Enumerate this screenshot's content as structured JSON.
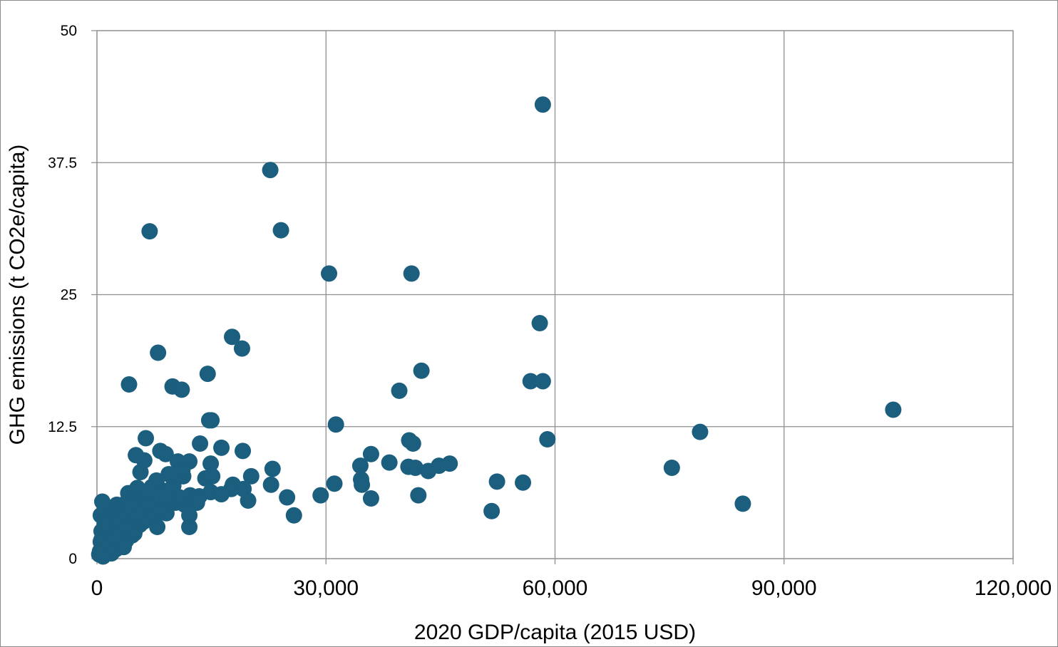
{
  "chart_data": {
    "type": "scatter",
    "xlabel": "2020 GDP/capita (2015 USD)",
    "ylabel": "GHG emissions (t CO2e/capita)",
    "xlim": [
      0,
      120000
    ],
    "ylim": [
      0,
      50
    ],
    "x_ticks": [
      "0",
      "30,000",
      "60,000",
      "90,000",
      "120,000"
    ],
    "y_ticks": [
      "0",
      "12.5",
      "25",
      "37.5",
      "50"
    ],
    "grid": true,
    "legend": "none",
    "marker_color": "#1b5e7e",
    "series": [
      {
        "points": [
          [
            58400,
            43.0
          ],
          [
            22700,
            36.8
          ],
          [
            6900,
            31.0
          ],
          [
            24100,
            31.1
          ],
          [
            30400,
            27.0
          ],
          [
            41200,
            27.0
          ],
          [
            17700,
            21.0
          ],
          [
            58000,
            22.3
          ],
          [
            19000,
            19.9
          ],
          [
            8000,
            19.5
          ],
          [
            42500,
            17.8
          ],
          [
            14500,
            17.5
          ],
          [
            4200,
            16.5
          ],
          [
            9900,
            16.3
          ],
          [
            11100,
            16.0
          ],
          [
            56800,
            16.8
          ],
          [
            58400,
            16.8
          ],
          [
            39600,
            15.9
          ],
          [
            104300,
            14.1
          ],
          [
            14700,
            13.1
          ],
          [
            15000,
            13.1
          ],
          [
            31300,
            12.7
          ],
          [
            79000,
            12.0
          ],
          [
            6400,
            11.4
          ],
          [
            40900,
            11.2
          ],
          [
            41400,
            10.9
          ],
          [
            59000,
            11.3
          ],
          [
            13500,
            10.9
          ],
          [
            16300,
            10.5
          ],
          [
            19100,
            10.2
          ],
          [
            35900,
            9.9
          ],
          [
            5100,
            9.8
          ],
          [
            8300,
            10.2
          ],
          [
            9000,
            9.9
          ],
          [
            6200,
            9.3
          ],
          [
            10600,
            9.2
          ],
          [
            12100,
            9.2
          ],
          [
            38300,
            9.1
          ],
          [
            46200,
            9.0
          ],
          [
            44800,
            8.8
          ],
          [
            40800,
            8.7
          ],
          [
            41700,
            8.6
          ],
          [
            43400,
            8.3
          ],
          [
            34500,
            8.8
          ],
          [
            14900,
            9.0
          ],
          [
            23000,
            8.5
          ],
          [
            75300,
            8.6
          ],
          [
            5700,
            8.2
          ],
          [
            9400,
            8.0
          ],
          [
            11300,
            7.8
          ],
          [
            20200,
            7.8
          ],
          [
            14200,
            7.6
          ],
          [
            15100,
            7.8
          ],
          [
            34600,
            7.5
          ],
          [
            52400,
            7.3
          ],
          [
            55800,
            7.2
          ],
          [
            31100,
            7.1
          ],
          [
            34700,
            7.0
          ],
          [
            17800,
            7.0
          ],
          [
            22800,
            7.0
          ],
          [
            17600,
            6.6
          ],
          [
            19200,
            6.6
          ],
          [
            5300,
            6.7
          ],
          [
            7200,
            6.8
          ],
          [
            8400,
            6.5
          ],
          [
            4100,
            6.2
          ],
          [
            12200,
            6.0
          ],
          [
            13400,
            5.9
          ],
          [
            14900,
            6.3
          ],
          [
            16300,
            6.1
          ],
          [
            24900,
            5.8
          ],
          [
            29300,
            6.0
          ],
          [
            42100,
            6.0
          ],
          [
            35900,
            5.7
          ],
          [
            19800,
            5.5
          ],
          [
            8600,
            5.2
          ],
          [
            10300,
            5.3
          ],
          [
            11500,
            5.1
          ],
          [
            13100,
            5.3
          ],
          [
            6000,
            5.0
          ],
          [
            700,
            5.4
          ],
          [
            2600,
            5.1
          ],
          [
            3700,
            5.2
          ],
          [
            4800,
            5.4
          ],
          [
            84600,
            5.2
          ],
          [
            51700,
            4.5
          ],
          [
            25800,
            4.1
          ],
          [
            12100,
            4.1
          ],
          [
            500,
            4.1
          ],
          [
            7700,
            4.1
          ],
          [
            3300,
            4.4
          ],
          [
            1800,
            4.8
          ],
          [
            2900,
            4.7
          ],
          [
            4100,
            4.9
          ],
          [
            5200,
            4.6
          ],
          [
            6400,
            4.4
          ],
          [
            7600,
            4.7
          ],
          [
            9100,
            4.3
          ],
          [
            12100,
            3.0
          ],
          [
            7900,
            3.0
          ],
          [
            6100,
            3.5
          ],
          [
            1400,
            3.9
          ],
          [
            2200,
            3.6
          ],
          [
            3500,
            3.4
          ],
          [
            4700,
            3.7
          ],
          [
            5600,
            3.2
          ],
          [
            2700,
            3.9
          ],
          [
            3900,
            4.0
          ],
          [
            1000,
            3.2
          ],
          [
            1900,
            3.0
          ],
          [
            2900,
            2.8
          ],
          [
            4300,
            2.6
          ],
          [
            5100,
            2.9
          ],
          [
            600,
            2.6
          ],
          [
            1500,
            2.5
          ],
          [
            2400,
            2.4
          ],
          [
            3400,
            2.3
          ],
          [
            4600,
            2.2
          ],
          [
            800,
            2.0
          ],
          [
            1700,
            1.9
          ],
          [
            2700,
            1.8
          ],
          [
            3800,
            1.7
          ],
          [
            500,
            1.6
          ],
          [
            1200,
            1.5
          ],
          [
            2100,
            1.4
          ],
          [
            3100,
            1.3
          ],
          [
            700,
            1.1
          ],
          [
            1500,
            1.0
          ],
          [
            2500,
            0.9
          ],
          [
            400,
            0.7
          ],
          [
            1100,
            0.6
          ],
          [
            1900,
            0.5
          ],
          [
            300,
            0.4
          ],
          [
            900,
            0.3
          ],
          [
            600,
            1.8
          ],
          [
            1300,
            2.2
          ],
          [
            2000,
            2.7
          ],
          [
            3000,
            3.1
          ],
          [
            4000,
            3.5
          ],
          [
            5000,
            3.9
          ],
          [
            2300,
            4.2
          ],
          [
            3200,
            4.6
          ],
          [
            4400,
            5.0
          ],
          [
            5800,
            5.6
          ],
          [
            6800,
            5.9
          ],
          [
            3600,
            2.0
          ],
          [
            4900,
            2.4
          ],
          [
            6600,
            3.8
          ],
          [
            7300,
            4.3
          ],
          [
            8200,
            4.8
          ],
          [
            9600,
            5.6
          ],
          [
            10800,
            5.8
          ],
          [
            7000,
            5.3
          ],
          [
            1000,
            0.9
          ],
          [
            1700,
            1.3
          ],
          [
            2800,
            1.6
          ],
          [
            3500,
            1.1
          ],
          [
            800,
            0.2
          ],
          [
            2300,
            2.1
          ],
          [
            3300,
            2.6
          ],
          [
            4000,
            3.0
          ],
          [
            1600,
            3.4
          ],
          [
            2600,
            3.6
          ],
          [
            3700,
            4.3
          ],
          [
            4500,
            4.7
          ],
          [
            5400,
            4.1
          ],
          [
            6900,
            6.3
          ],
          [
            8900,
            6.0
          ],
          [
            10000,
            6.9
          ],
          [
            11200,
            8.4
          ],
          [
            7800,
            7.4
          ],
          [
            9900,
            7.9
          ]
        ]
      }
    ]
  }
}
